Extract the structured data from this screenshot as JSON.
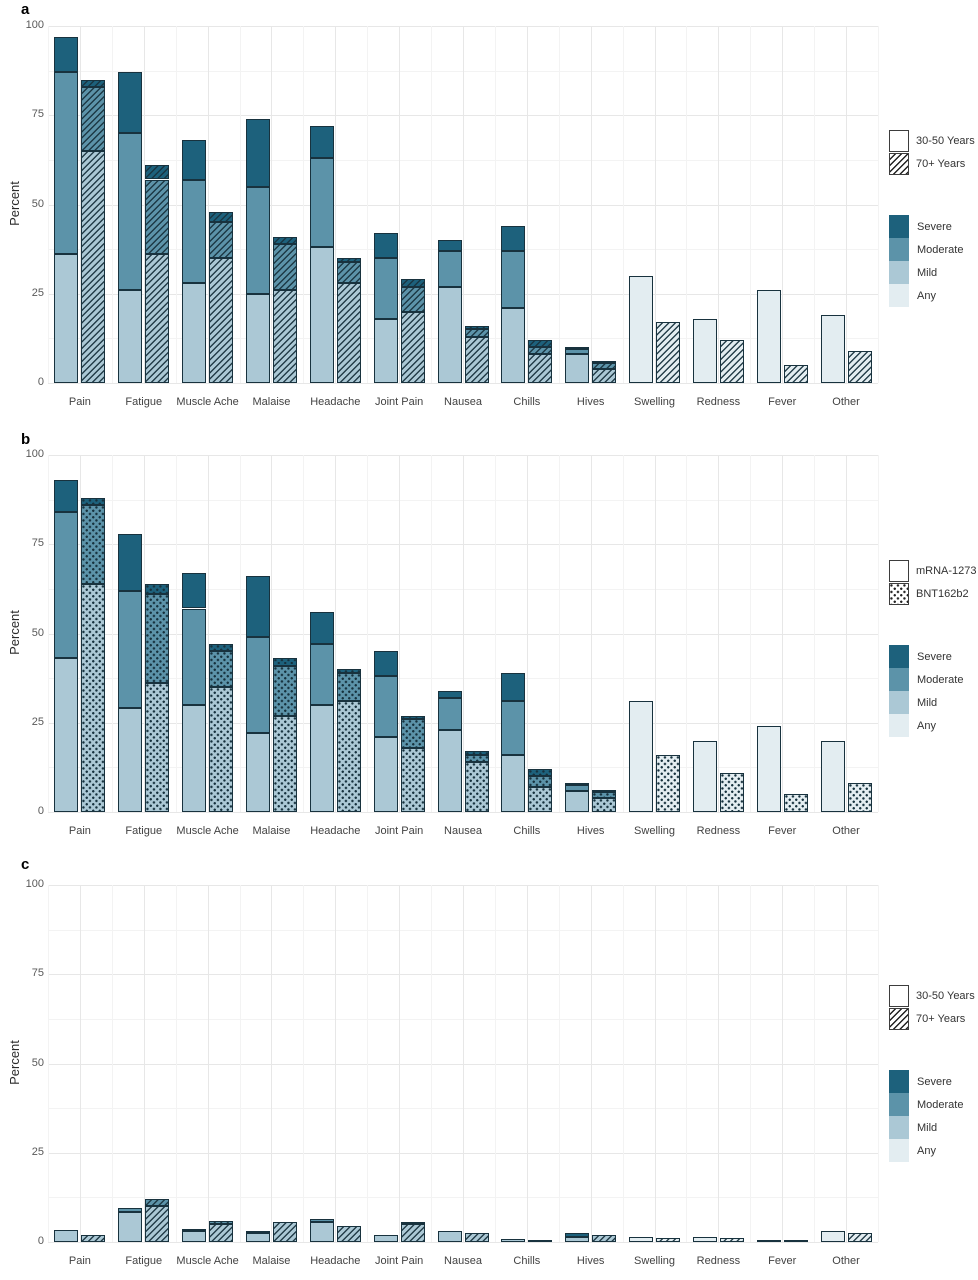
{
  "figure": {
    "background": "#ffffff"
  },
  "chart_data": {
    "type": "bar",
    "stacked": true,
    "grid": true,
    "ylabel": "Percent",
    "ylim": [
      0,
      100
    ],
    "yticks": [
      0,
      25,
      50,
      75,
      100
    ],
    "categories": [
      "Pain",
      "Fatigue",
      "Muscle Ache",
      "Malaise",
      "Headache",
      "Joint Pain",
      "Nausea",
      "Chills",
      "Hives",
      "Swelling",
      "Redness",
      "Fever",
      "Other"
    ],
    "severity_legend": [
      "Severe",
      "Moderate",
      "Mild",
      "Any"
    ],
    "severity_colors": {
      "severe": "#1d617c",
      "moderate": "#5c93a9",
      "mild": "#abc8d5",
      "any": "#e3edf1"
    },
    "bar_border_color": "#18323e",
    "legend_position": "right",
    "panels": [
      {
        "letter": "a",
        "ylabel": "Percent",
        "pattern_legend": [
          {
            "label": "30-50 Years",
            "pattern": "plain"
          },
          {
            "label": "70+ Years",
            "pattern": "hatch"
          }
        ],
        "series": [
          {
            "name": "30-50 Years",
            "pattern": "plain",
            "segments": {
              "any": [
                0,
                0,
                0,
                0,
                0,
                0,
                0,
                0,
                0,
                30,
                18,
                26,
                19
              ],
              "mild": [
                36,
                26,
                28,
                25,
                38,
                18,
                27,
                21,
                8,
                0,
                0,
                0,
                0
              ],
              "moderate": [
                51,
                44,
                29,
                30,
                25,
                17,
                10,
                16,
                1.5,
                0,
                0,
                0,
                0
              ],
              "severe": [
                10,
                17,
                11,
                19,
                9,
                7,
                3,
                7,
                0.5,
                0,
                0,
                0,
                0
              ]
            }
          },
          {
            "name": "70+ Years",
            "pattern": "hatch",
            "segments": {
              "any": [
                0,
                0,
                0,
                0,
                0,
                0,
                0,
                0,
                0,
                17,
                12,
                5,
                9
              ],
              "mild": [
                65,
                36,
                35,
                26,
                28,
                20,
                13,
                8,
                4,
                0,
                0,
                0,
                0
              ],
              "moderate": [
                18,
                21,
                10,
                13,
                6,
                7,
                2,
                2,
                1.5,
                0,
                0,
                0,
                0
              ],
              "severe": [
                2,
                4,
                3,
                2,
                1,
                2,
                1,
                2,
                0.5,
                0,
                0,
                0,
                0
              ]
            }
          }
        ]
      },
      {
        "letter": "b",
        "ylabel": "Percent",
        "pattern_legend": [
          {
            "label": "mRNA-1273",
            "pattern": "plain"
          },
          {
            "label": "BNT162b2",
            "pattern": "dots"
          }
        ],
        "series": [
          {
            "name": "mRNA-1273",
            "pattern": "plain",
            "segments": {
              "any": [
                0,
                0,
                0,
                0,
                0,
                0,
                0,
                0,
                0,
                31,
                20,
                24,
                20
              ],
              "mild": [
                43,
                29,
                30,
                22,
                30,
                21,
                23,
                16,
                6,
                0,
                0,
                0,
                0
              ],
              "moderate": [
                41,
                33,
                27,
                27,
                17,
                17,
                9,
                15,
                1.5,
                0,
                0,
                0,
                0
              ],
              "severe": [
                9,
                16,
                10,
                17,
                9,
                7,
                2,
                8,
                0.5,
                0,
                0,
                0,
                0
              ]
            }
          },
          {
            "name": "BNT162b2",
            "pattern": "dots",
            "segments": {
              "any": [
                0,
                0,
                0,
                0,
                0,
                0,
                0,
                0,
                0,
                16,
                11,
                5,
                8
              ],
              "mild": [
                64,
                36,
                35,
                27,
                31,
                18,
                14,
                7,
                4,
                0,
                0,
                0,
                0
              ],
              "moderate": [
                22,
                25,
                10,
                14,
                8,
                8,
                2,
                3,
                1.5,
                0,
                0,
                0,
                0
              ],
              "severe": [
                2,
                3,
                2,
                2,
                1,
                1,
                1,
                2,
                0.5,
                0,
                0,
                0,
                0
              ]
            }
          }
        ]
      },
      {
        "letter": "c",
        "ylabel": "Percent",
        "pattern_legend": [
          {
            "label": "30-50 Years",
            "pattern": "plain"
          },
          {
            "label": "70+ Years",
            "pattern": "hatch"
          }
        ],
        "series": [
          {
            "name": "30-50 Years",
            "pattern": "plain",
            "segments": {
              "any": [
                0,
                0,
                0,
                0,
                0,
                0,
                0,
                0,
                0,
                1.5,
                1.5,
                0.3,
                3
              ],
              "mild": [
                3.5,
                8.5,
                3,
                2.5,
                5.5,
                2,
                3,
                0.8,
                1.5,
                0,
                0,
                0,
                0
              ],
              "moderate": [
                0,
                1,
                0.5,
                0.5,
                1,
                0,
                0,
                0,
                0,
                0,
                0,
                0,
                0
              ],
              "severe": [
                0,
                0,
                0,
                0,
                0,
                0,
                0,
                0,
                1,
                0,
                0,
                0,
                0
              ]
            }
          },
          {
            "name": "70+ Years",
            "pattern": "hatch",
            "segments": {
              "any": [
                0,
                0,
                0,
                0,
                0,
                0,
                0,
                0,
                0,
                1,
                1,
                0.4,
                2.5
              ],
              "mild": [
                2,
                10,
                5,
                5.5,
                4.5,
                5,
                2.5,
                0.3,
                2,
                0,
                0,
                0,
                0
              ],
              "moderate": [
                0,
                2,
                1,
                0,
                0,
                0.5,
                0,
                0,
                0,
                0,
                0,
                0,
                0
              ],
              "severe": [
                0,
                0,
                0,
                0,
                0,
                0,
                0,
                0,
                0,
                0,
                0,
                0,
                0
              ]
            }
          }
        ]
      }
    ]
  }
}
